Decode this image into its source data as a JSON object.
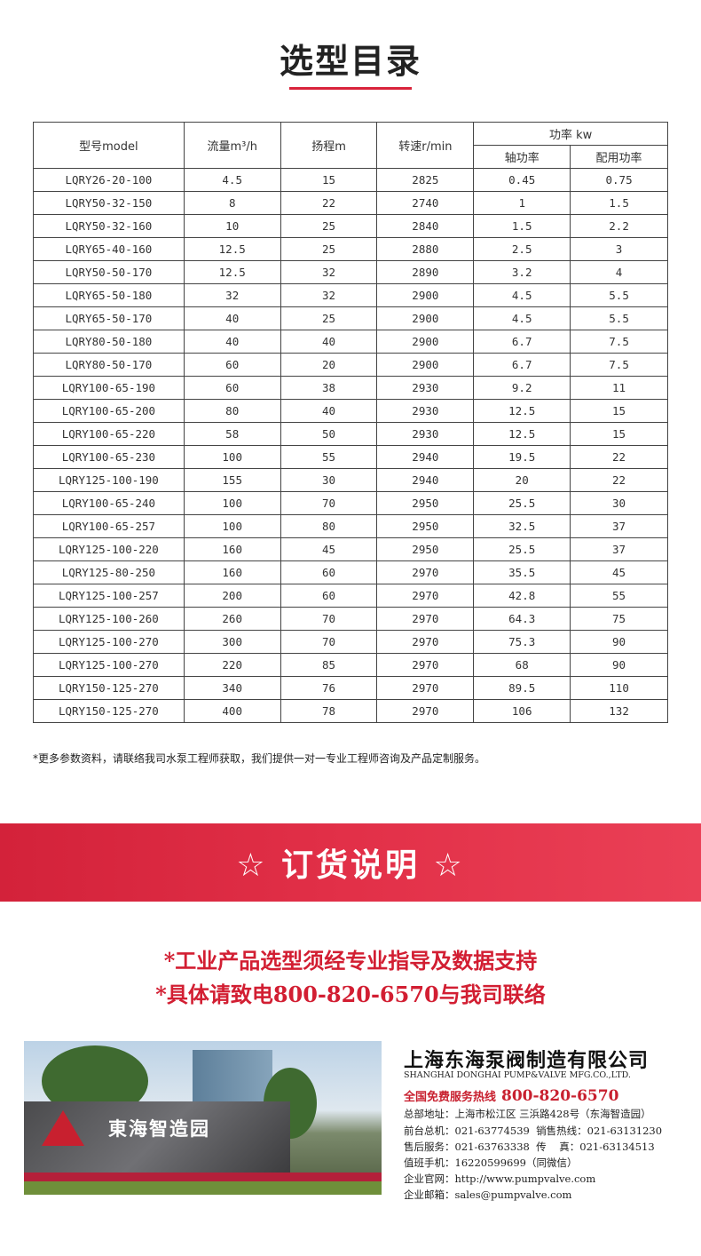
{
  "title": "选型目录",
  "table": {
    "headers": {
      "model": "型号model",
      "flow": "流量m³/h",
      "head": "扬程m",
      "speed": "转速r/min",
      "power": "功率 kw",
      "shaft_power": "轴功率",
      "motor_power": "配用功率"
    },
    "rows": [
      [
        "LQRY26-20-100",
        "4.5",
        "15",
        "2825",
        "0.45",
        "0.75"
      ],
      [
        "LQRY50-32-150",
        "8",
        "22",
        "2740",
        "1",
        "1.5"
      ],
      [
        "LQRY50-32-160",
        "10",
        "25",
        "2840",
        "1.5",
        "2.2"
      ],
      [
        "LQRY65-40-160",
        "12.5",
        "25",
        "2880",
        "2.5",
        "3"
      ],
      [
        "LQRY50-50-170",
        "12.5",
        "32",
        "2890",
        "3.2",
        "4"
      ],
      [
        "LQRY65-50-180",
        "32",
        "32",
        "2900",
        "4.5",
        "5.5"
      ],
      [
        "LQRY65-50-170",
        "40",
        "25",
        "2900",
        "4.5",
        "5.5"
      ],
      [
        "LQRY80-50-180",
        "40",
        "40",
        "2900",
        "6.7",
        "7.5"
      ],
      [
        "LQRY80-50-170",
        "60",
        "20",
        "2900",
        "6.7",
        "7.5"
      ],
      [
        "LQRY100-65-190",
        "60",
        "38",
        "2930",
        "9.2",
        "11"
      ],
      [
        "LQRY100-65-200",
        "80",
        "40",
        "2930",
        "12.5",
        "15"
      ],
      [
        "LQRY100-65-220",
        "58",
        "50",
        "2930",
        "12.5",
        "15"
      ],
      [
        "LQRY100-65-230",
        "100",
        "55",
        "2940",
        "19.5",
        "22"
      ],
      [
        "LQRY125-100-190",
        "155",
        "30",
        "2940",
        "20",
        "22"
      ],
      [
        "LQRY100-65-240",
        "100",
        "70",
        "2950",
        "25.5",
        "30"
      ],
      [
        "LQRY100-65-257",
        "100",
        "80",
        "2950",
        "32.5",
        "37"
      ],
      [
        "LQRY125-100-220",
        "160",
        "45",
        "2950",
        "25.5",
        "37"
      ],
      [
        "LQRY125-80-250",
        "160",
        "60",
        "2970",
        "35.5",
        "45"
      ],
      [
        "LQRY125-100-257",
        "200",
        "60",
        "2970",
        "42.8",
        "55"
      ],
      [
        "LQRY125-100-260",
        "260",
        "70",
        "2970",
        "64.3",
        "75"
      ],
      [
        "LQRY125-100-270",
        "300",
        "70",
        "2970",
        "75.3",
        "90"
      ],
      [
        "LQRY125-100-270",
        "220",
        "85",
        "2970",
        "68",
        "90"
      ],
      [
        "LQRY150-125-270",
        "340",
        "76",
        "2970",
        "89.5",
        "110"
      ],
      [
        "LQRY150-125-270",
        "400",
        "78",
        "2970",
        "106",
        "132"
      ]
    ]
  },
  "note": "*更多参数资料，请联络我司水泵工程师获取，我们提供一对一专业工程师咨询及产品定制服务。",
  "banner": "☆ 订货说明 ☆",
  "notice": [
    "*工业产品选型须经专业指导及数据支持",
    "*具体请致电800-820-6570与我司联络"
  ],
  "photo": {
    "sign": "東海智造园"
  },
  "contact": {
    "company": "上海东海泵阀制造有限公司",
    "company_en": "SHANGHAI DONGHAI PUMP&VALVE MFG.CO.,LTD.",
    "hotline_label": "全国免费服务热线",
    "hotline": "800-820-6570",
    "lines": [
      "总部地址：上海市松江区 三浜路428号（东海智造园）",
      "前台总机：021-63774539  销售热线：021-63131230",
      "售后服务：021-63763338  传    真：021-63134513",
      "值班手机：16220599699（同微信）",
      "企业官网：http://www.pumpvalve.com",
      "企业邮箱：sales@pumpvalve.com"
    ]
  },
  "colors": {
    "accent": "#d9243b"
  }
}
